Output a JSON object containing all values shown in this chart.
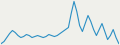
{
  "values": [
    30,
    32,
    36,
    40,
    43,
    41,
    38,
    36,
    37,
    39,
    38,
    36,
    37,
    38,
    37,
    36,
    37,
    39,
    38,
    37,
    38,
    40,
    42,
    44,
    46,
    60,
    72,
    62,
    48,
    42,
    50,
    58,
    52,
    44,
    38,
    44,
    50,
    42,
    34,
    38,
    44,
    36,
    30
  ],
  "line_color": "#2b8fc4",
  "bg_color": "#f0f0eb",
  "linewidth": 0.8
}
